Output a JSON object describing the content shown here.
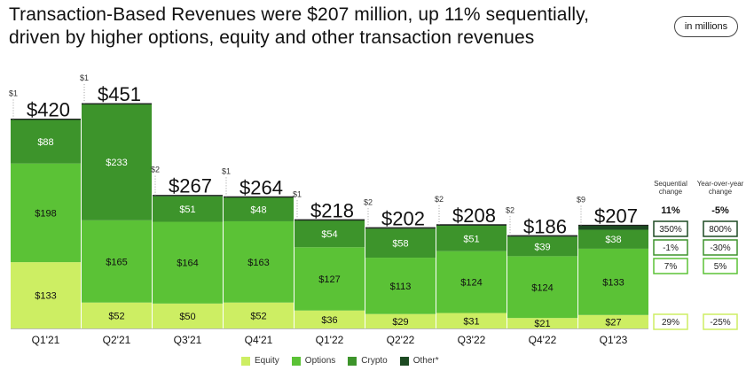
{
  "title_line1": "Transaction-Based Revenues were $207 million, up 11% sequentially,",
  "title_line2": "driven by higher options, equity and other transaction revenues",
  "units_badge": "in millions",
  "chart_data": {
    "type": "bar",
    "stacked": true,
    "categories": [
      "Q1'21",
      "Q2'21",
      "Q3'21",
      "Q4'21",
      "Q1'22",
      "Q2'22",
      "Q3'22",
      "Q4'22",
      "Q1'23"
    ],
    "series": [
      {
        "name": "Equity",
        "color": "#cdee63",
        "values": [
          133,
          52,
          50,
          52,
          36,
          29,
          31,
          21,
          27
        ]
      },
      {
        "name": "Options",
        "color": "#5bc236",
        "values": [
          198,
          165,
          164,
          163,
          127,
          113,
          124,
          124,
          133
        ]
      },
      {
        "name": "Crypto",
        "color": "#3d942b",
        "values": [
          88,
          233,
          51,
          48,
          54,
          58,
          51,
          39,
          38
        ]
      },
      {
        "name": "Other*",
        "color": "#1d4a22",
        "values": [
          1,
          1,
          2,
          1,
          1,
          2,
          2,
          2,
          9
        ]
      }
    ],
    "totals": [
      420,
      451,
      267,
      264,
      218,
      202,
      208,
      186,
      207
    ],
    "legend_position": "bottom",
    "grid": false
  },
  "changes": {
    "headers": [
      "Sequential change",
      "Year-over-year change"
    ],
    "header_lines": [
      [
        "Sequential",
        "change"
      ],
      [
        "Year-over-year",
        "change"
      ]
    ],
    "total": [
      "11%",
      "-5%"
    ],
    "rows": [
      {
        "series": "Other*",
        "seq": "350%",
        "yoy": "800%"
      },
      {
        "series": "Crypto",
        "seq": "-1%",
        "yoy": "-30%"
      },
      {
        "series": "Options",
        "seq": "7%",
        "yoy": "5%"
      },
      {
        "series": "Equity",
        "seq": "29%",
        "yoy": "-25%"
      }
    ]
  }
}
